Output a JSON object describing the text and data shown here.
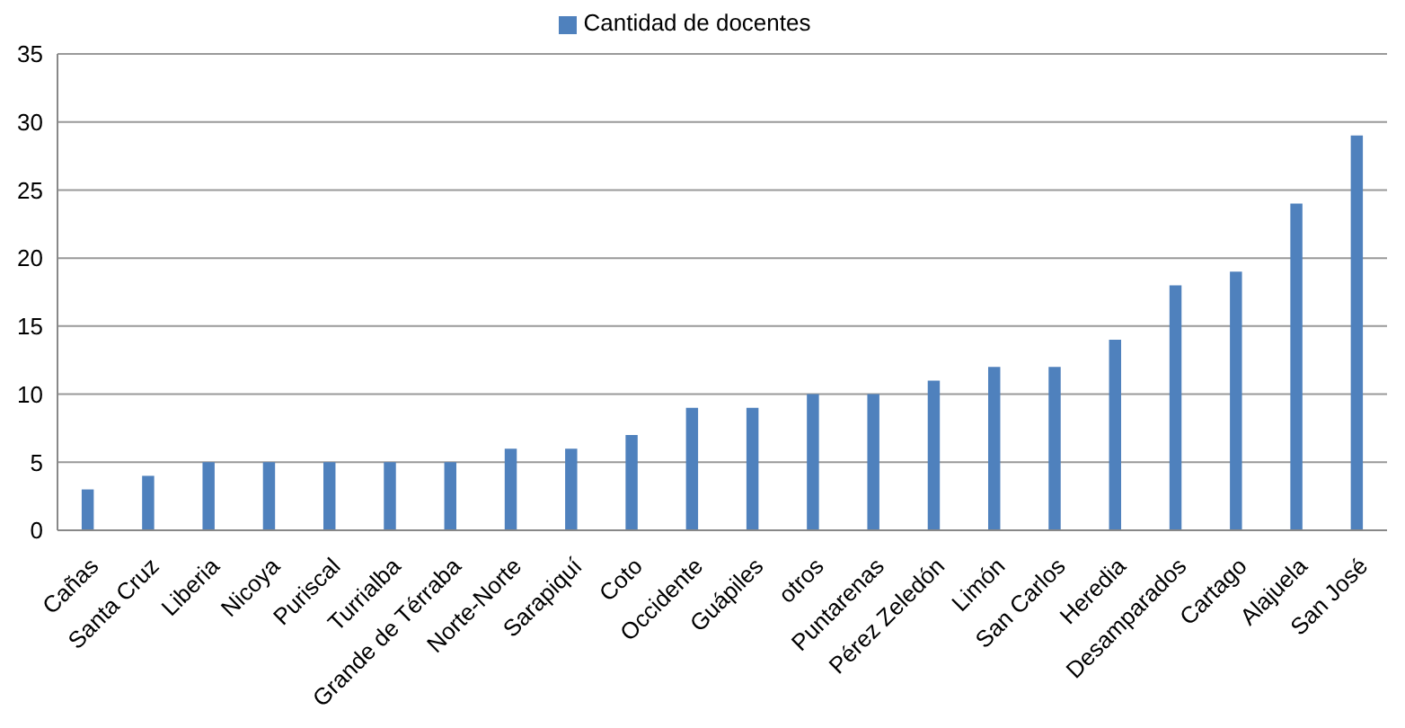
{
  "chart_data": {
    "type": "bar",
    "categories": [
      "Cañas",
      "Santa Cruz",
      "Liberia",
      "Nicoya",
      "Puriscal",
      "Turrialba",
      "Grande de Térraba",
      "Norte-Norte",
      "Sarapiquí",
      "Coto",
      "Occidente",
      "Guápiles",
      "otros",
      "Puntarenas",
      "Pérez Zeledón",
      "Limón",
      "San Carlos",
      "Heredia",
      "Desamparados",
      "Cartago",
      "Alajuela",
      "San José"
    ],
    "series": [
      {
        "name": "Cantidad de docentes",
        "color": "#4f81bd",
        "values": [
          3,
          4,
          5,
          5,
          5,
          5,
          5,
          6,
          6,
          7,
          9,
          9,
          10,
          10,
          11,
          12,
          12,
          14,
          18,
          19,
          24,
          29
        ]
      }
    ],
    "ylim": [
      0,
      35
    ],
    "yticks": [
      0,
      5,
      10,
      15,
      20,
      25,
      30,
      35
    ],
    "grid": "y",
    "legend": "top"
  }
}
